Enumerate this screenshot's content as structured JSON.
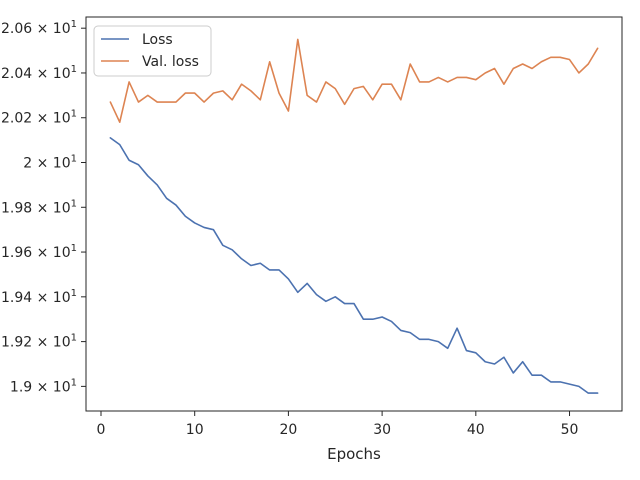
{
  "chart_data": {
    "type": "line",
    "xlabel": "Epochs",
    "ylabel": "",
    "xlim": [
      -1.6,
      55.6
    ],
    "ylim": [
      18.89,
      20.65
    ],
    "x_ticks": [
      0,
      10,
      20,
      30,
      40,
      50
    ],
    "x_tick_labels": [
      "0",
      "10",
      "20",
      "30",
      "40",
      "50"
    ],
    "y_ticks": [
      19.0,
      19.2,
      19.4,
      19.6,
      19.8,
      20.0,
      20.2,
      20.4,
      20.6
    ],
    "y_tick_labels": [
      {
        "mantissa": "1.9",
        "exp": "1"
      },
      {
        "mantissa": "1.92",
        "exp": "1"
      },
      {
        "mantissa": "1.94",
        "exp": "1"
      },
      {
        "mantissa": "1.96",
        "exp": "1"
      },
      {
        "mantissa": "1.98",
        "exp": "1"
      },
      {
        "mantissa": "2",
        "exp": "1"
      },
      {
        "mantissa": "2.02",
        "exp": "1"
      },
      {
        "mantissa": "2.04",
        "exp": "1"
      },
      {
        "mantissa": "2.06",
        "exp": "1"
      }
    ],
    "grid": false,
    "legend_position": "top-left",
    "x": [
      1,
      2,
      3,
      4,
      5,
      6,
      7,
      8,
      9,
      10,
      11,
      12,
      13,
      14,
      15,
      16,
      17,
      18,
      19,
      20,
      21,
      22,
      23,
      24,
      25,
      26,
      27,
      28,
      29,
      30,
      31,
      32,
      33,
      34,
      35,
      36,
      37,
      38,
      39,
      40,
      41,
      42,
      43,
      44,
      45,
      46,
      47,
      48,
      49,
      50,
      51,
      52,
      53
    ],
    "series": [
      {
        "name": "Loss",
        "color": "#4c72b0",
        "values": [
          20.11,
          20.08,
          20.01,
          19.99,
          19.94,
          19.9,
          19.84,
          19.81,
          19.76,
          19.73,
          19.71,
          19.7,
          19.63,
          19.61,
          19.57,
          19.54,
          19.55,
          19.52,
          19.52,
          19.48,
          19.42,
          19.46,
          19.41,
          19.38,
          19.4,
          19.37,
          19.37,
          19.3,
          19.3,
          19.31,
          19.29,
          19.25,
          19.24,
          19.21,
          19.21,
          19.2,
          19.17,
          19.26,
          19.16,
          19.15,
          19.11,
          19.1,
          19.13,
          19.06,
          19.11,
          19.05,
          19.05,
          19.02,
          19.02,
          19.01,
          19.0,
          18.97,
          18.97
        ]
      },
      {
        "name": "Val. loss",
        "color": "#dd8452",
        "values": [
          20.27,
          20.18,
          20.36,
          20.27,
          20.3,
          20.27,
          20.27,
          20.27,
          20.31,
          20.31,
          20.27,
          20.31,
          20.32,
          20.28,
          20.35,
          20.32,
          20.28,
          20.45,
          20.31,
          20.23,
          20.55,
          20.3,
          20.27,
          20.36,
          20.33,
          20.26,
          20.33,
          20.34,
          20.28,
          20.35,
          20.35,
          20.28,
          20.44,
          20.36,
          20.36,
          20.38,
          20.36,
          20.38,
          20.38,
          20.37,
          20.4,
          20.42,
          20.35,
          20.42,
          20.44,
          20.42,
          20.45,
          20.47,
          20.47,
          20.46,
          20.4,
          20.44,
          20.51
        ]
      }
    ]
  },
  "colors": {
    "axis": "#262626",
    "loss": "#4c72b0",
    "val_loss": "#dd8452"
  }
}
